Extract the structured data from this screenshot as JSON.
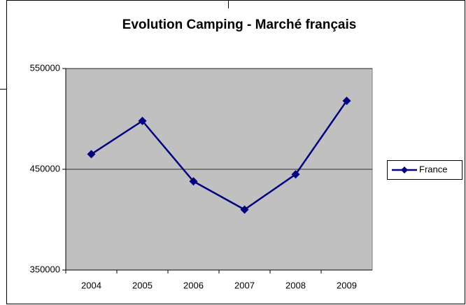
{
  "chart_data": {
    "type": "line",
    "title": "Evolution Camping - Marché français",
    "categories": [
      "2004",
      "2005",
      "2006",
      "2007",
      "2008",
      "2009"
    ],
    "series": [
      {
        "name": "France",
        "color": "#000080",
        "values": [
          465000,
          498000,
          438000,
          410000,
          445000,
          518000
        ]
      }
    ],
    "ylim": [
      350000,
      550000
    ],
    "yticks": [
      350000,
      450000,
      550000
    ],
    "grid": true,
    "legend": "right",
    "plot_background": "#c0c0c0"
  }
}
